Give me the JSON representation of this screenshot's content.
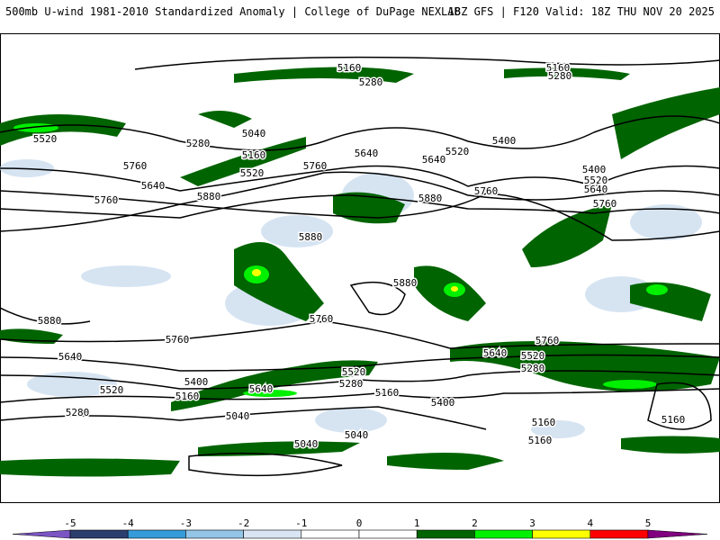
{
  "header": {
    "title": "500mb U-wind 1981-2010 Standardized Anomaly | College of DuPage NEXLAB",
    "valid": "18Z GFS | F120 Valid: 18Z THU NOV 20 2025"
  },
  "map": {
    "contour_labels": [
      "5160",
      "5160",
      "5280",
      "5280",
      "5520",
      "5280",
      "5040",
      "5400",
      "5760",
      "5160",
      "5640",
      "5640",
      "5520",
      "5760",
      "5400",
      "5520",
      "5520",
      "5640",
      "5640",
      "5880",
      "5760",
      "5880",
      "5760",
      "5760",
      "5880",
      "5880",
      "5880",
      "5760",
      "5760",
      "5760",
      "5640",
      "5520",
      "5640",
      "5280",
      "5520",
      "5400",
      "5520",
      "5640",
      "5280",
      "5160",
      "5160",
      "5400",
      "5280",
      "5040",
      "5160",
      "5160",
      "5040",
      "5160",
      "5040"
    ]
  },
  "colorbar": {
    "ticks": [
      "-5",
      "-4",
      "-3",
      "-2",
      "-1",
      "0",
      "1",
      "2",
      "3",
      "4",
      "5"
    ],
    "colors": [
      "#7b55c4",
      "#2b3f6e",
      "#369bd9",
      "#92c5e8",
      "#d9e5f2",
      "#ffffff",
      "#ffffff",
      "#006400",
      "#00f000",
      "#ffff00",
      "#ff0000",
      "#800080"
    ]
  }
}
